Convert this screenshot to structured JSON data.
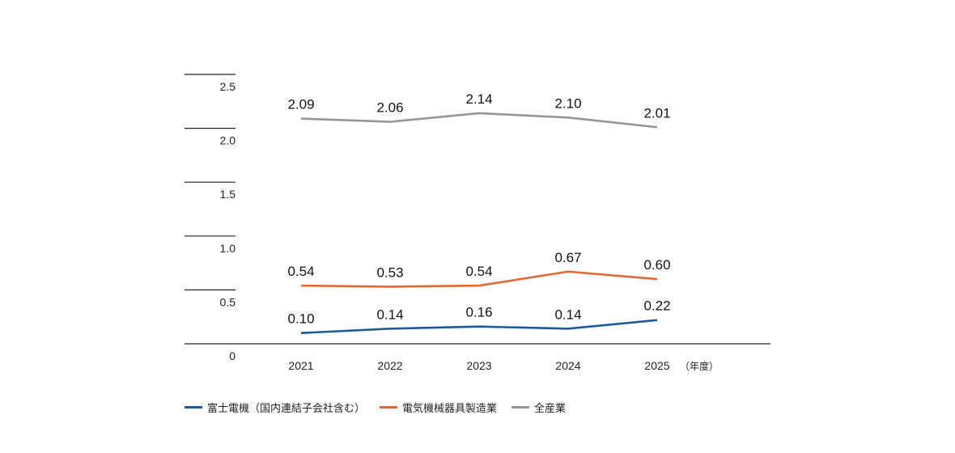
{
  "chart_data": {
    "type": "line",
    "categories": [
      "2021",
      "2022",
      "2023",
      "2024",
      "2025"
    ],
    "x_unit": "（年度）",
    "ylim": [
      0,
      2.5
    ],
    "yticks": [
      "0",
      "0.5",
      "1.0",
      "1.5",
      "2.0",
      "2.5"
    ],
    "ytick_values": [
      0,
      0.5,
      1.0,
      1.5,
      2.0,
      2.5
    ],
    "grid": false,
    "legend_position": "bottom-left",
    "series": [
      {
        "name": "富士電機（国内連結子会社含む）",
        "color": "#1a5b9a",
        "values": [
          0.1,
          0.14,
          0.16,
          0.14,
          0.22
        ],
        "labels": [
          "0.10",
          "0.14",
          "0.16",
          "0.14",
          "0.22"
        ]
      },
      {
        "name": "電気機械器具製造業",
        "color": "#e06a35",
        "values": [
          0.54,
          0.53,
          0.54,
          0.67,
          0.6
        ],
        "labels": [
          "0.54",
          "0.53",
          "0.54",
          "0.67",
          "0.60"
        ]
      },
      {
        "name": "全産業",
        "color": "#9a9499",
        "values": [
          2.09,
          2.06,
          2.14,
          2.1,
          2.01
        ],
        "labels": [
          "2.09",
          "2.06",
          "2.14",
          "2.10",
          "2.01"
        ]
      }
    ]
  }
}
